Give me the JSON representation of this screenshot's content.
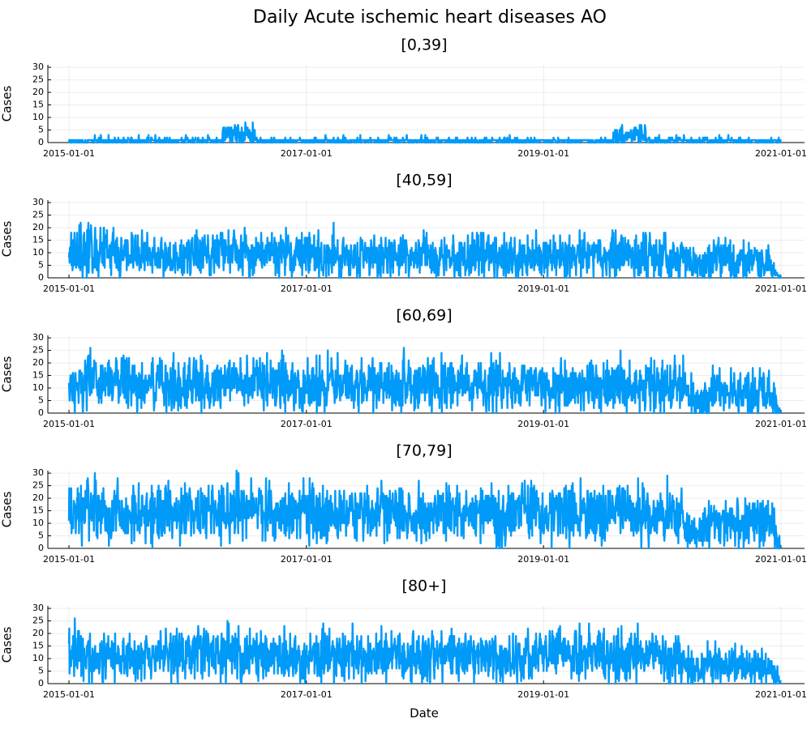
{
  "chart_data": {
    "type": "line",
    "title": "Daily Acute ischemic heart diseases AO",
    "xlabel": "Date",
    "ylabel": "Cases",
    "series_color": "#009af9",
    "x_range": [
      "2015-01-01",
      "2021-01-01"
    ],
    "x_ticks": [
      "2015-01-01",
      "2017-01-01",
      "2019-01-01",
      "2021-01-01"
    ],
    "y_ticks": [
      0,
      5,
      10,
      15,
      20,
      25,
      30
    ],
    "ylim": [
      0,
      31
    ],
    "grid": true,
    "legend": "none",
    "panels": [
      {
        "title": "[0,39]",
        "series": {
          "x": [
            "2015-01-01",
            "2015-06-01",
            "2015-12-01",
            "2016-04-01",
            "2016-05-15",
            "2016-09-01",
            "2017-01-01",
            "2017-06-01",
            "2018-01-01",
            "2018-06-01",
            "2019-01-01",
            "2019-06-01",
            "2019-10-01",
            "2020-01-01",
            "2020-06-01",
            "2020-12-31"
          ],
          "values": [
            1,
            1,
            1,
            1,
            4,
            1,
            1,
            1,
            1,
            1,
            1,
            1,
            3,
            1,
            1,
            0
          ]
        }
      },
      {
        "title": "[40,59]",
        "series": {
          "x": [
            "2015-01-01",
            "2015-03-01",
            "2015-06-01",
            "2015-09-01",
            "2015-12-01",
            "2016-03-01",
            "2016-06-01",
            "2016-09-01",
            "2016-12-01",
            "2017-03-01",
            "2017-06-01",
            "2017-09-01",
            "2017-12-01",
            "2018-03-01",
            "2018-06-01",
            "2018-09-01",
            "2018-12-01",
            "2019-03-01",
            "2019-06-01",
            "2019-09-01",
            "2019-12-01",
            "2020-03-01",
            "2020-04-15",
            "2020-06-01",
            "2020-09-01",
            "2020-12-01",
            "2020-12-31"
          ],
          "values": [
            12,
            11,
            10,
            9,
            8,
            10,
            11,
            10,
            9,
            9,
            9,
            8,
            9,
            8,
            9,
            9,
            8,
            9,
            9,
            9,
            8,
            8,
            4,
            7,
            7,
            6,
            0
          ]
        }
      },
      {
        "title": "[60,69]",
        "series": {
          "x": [
            "2015-01-01",
            "2015-03-01",
            "2015-06-01",
            "2015-09-01",
            "2015-12-01",
            "2016-03-01",
            "2016-06-01",
            "2016-09-01",
            "2016-12-01",
            "2017-03-01",
            "2017-06-01",
            "2017-09-01",
            "2017-12-01",
            "2018-03-01",
            "2018-06-01",
            "2018-09-01",
            "2018-12-01",
            "2019-03-01",
            "2019-06-01",
            "2019-09-01",
            "2019-12-01",
            "2020-03-01",
            "2020-04-15",
            "2020-06-01",
            "2020-09-01",
            "2020-12-01",
            "2020-12-31"
          ],
          "values": [
            11,
            13,
            12,
            11,
            12,
            12,
            12,
            12,
            11,
            11,
            12,
            11,
            12,
            12,
            11,
            12,
            11,
            11,
            11,
            12,
            11,
            11,
            4,
            8,
            8,
            8,
            0
          ]
        }
      },
      {
        "title": "[70,79]",
        "series": {
          "x": [
            "2015-01-01",
            "2015-03-01",
            "2015-06-01",
            "2015-09-01",
            "2015-12-01",
            "2016-03-01",
            "2016-06-01",
            "2016-09-01",
            "2016-12-01",
            "2017-03-01",
            "2017-06-01",
            "2017-09-01",
            "2017-12-01",
            "2018-03-01",
            "2018-06-01",
            "2018-09-01",
            "2018-12-01",
            "2019-03-01",
            "2019-06-01",
            "2019-09-01",
            "2019-12-01",
            "2020-03-01",
            "2020-04-15",
            "2020-06-01",
            "2020-09-01",
            "2020-12-01",
            "2020-12-31"
          ],
          "values": [
            14,
            15,
            14,
            14,
            15,
            15,
            16,
            15,
            15,
            14,
            15,
            14,
            14,
            15,
            14,
            15,
            14,
            14,
            14,
            15,
            13,
            13,
            5,
            10,
            10,
            10,
            1
          ]
        }
      },
      {
        "title": "[80+]",
        "series": {
          "x": [
            "2015-01-01",
            "2015-03-01",
            "2015-06-01",
            "2015-09-01",
            "2015-12-01",
            "2016-03-01",
            "2016-06-01",
            "2016-09-01",
            "2016-12-01",
            "2017-03-01",
            "2017-06-01",
            "2017-09-01",
            "2017-12-01",
            "2018-03-01",
            "2018-06-01",
            "2018-09-01",
            "2018-12-01",
            "2019-03-01",
            "2019-06-01",
            "2019-09-01",
            "2019-12-01",
            "2020-03-01",
            "2020-04-15",
            "2020-06-01",
            "2020-09-01",
            "2020-12-01",
            "2020-12-31"
          ],
          "values": [
            13,
            12,
            11,
            10,
            12,
            13,
            12,
            11,
            10,
            11,
            11,
            10,
            11,
            12,
            11,
            10,
            11,
            12,
            11,
            11,
            11,
            11,
            4,
            8,
            7,
            7,
            0
          ]
        }
      }
    ]
  }
}
